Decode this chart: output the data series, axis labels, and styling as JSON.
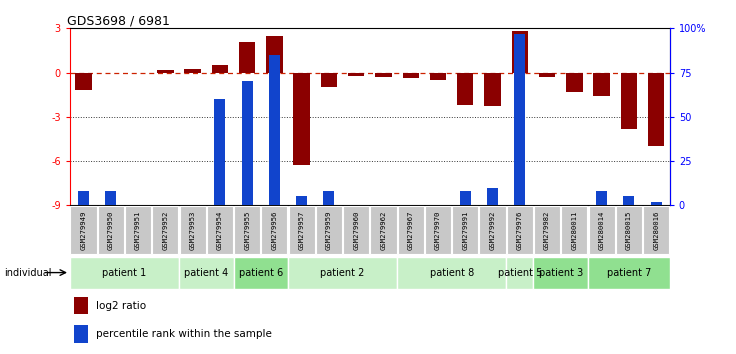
{
  "title": "GDS3698 / 6981",
  "samples": [
    "GSM279949",
    "GSM279950",
    "GSM279951",
    "GSM279952",
    "GSM279953",
    "GSM279954",
    "GSM279955",
    "GSM279956",
    "GSM279957",
    "GSM279959",
    "GSM279960",
    "GSM279962",
    "GSM279967",
    "GSM279970",
    "GSM279991",
    "GSM279992",
    "GSM279976",
    "GSM279982",
    "GSM280011",
    "GSM280014",
    "GSM280015",
    "GSM280016"
  ],
  "log2_ratio": [
    -1.2,
    0.0,
    0.0,
    0.15,
    0.25,
    0.5,
    2.1,
    2.5,
    -6.3,
    -1.0,
    -0.2,
    -0.3,
    -0.4,
    -0.5,
    -2.2,
    -2.3,
    2.8,
    -0.3,
    -1.3,
    -1.6,
    -3.8,
    -5.0
  ],
  "percentile_rank": [
    8,
    8,
    0,
    0,
    0,
    60,
    70,
    85,
    5,
    8,
    0,
    0,
    0,
    0,
    8,
    10,
    97,
    0,
    0,
    8,
    5,
    2
  ],
  "patients": [
    {
      "label": "patient 1",
      "start": 0,
      "end": 4,
      "color": "#c8f0c8"
    },
    {
      "label": "patient 4",
      "start": 4,
      "end": 6,
      "color": "#c8f0c8"
    },
    {
      "label": "patient 6",
      "start": 6,
      "end": 8,
      "color": "#90e090"
    },
    {
      "label": "patient 2",
      "start": 8,
      "end": 12,
      "color": "#c8f0c8"
    },
    {
      "label": "patient 8",
      "start": 12,
      "end": 16,
      "color": "#c8f0c8"
    },
    {
      "label": "patient 5",
      "start": 16,
      "end": 17,
      "color": "#c8f0c8"
    },
    {
      "label": "patient 3",
      "start": 17,
      "end": 19,
      "color": "#90e090"
    },
    {
      "label": "patient 7",
      "start": 19,
      "end": 22,
      "color": "#90e090"
    }
  ],
  "ylim_left": [
    -9,
    3
  ],
  "ylim_right": [
    0,
    100
  ],
  "bar_color_red": "#8B0000",
  "bar_color_blue": "#1144cc",
  "dashed_line_color": "#cc2200",
  "dotted_line_color": "#333333",
  "chart_bg": "#ffffff",
  "xlab_bg": "#c8c8c8",
  "legend_red_label": "log2 ratio",
  "legend_blue_label": "percentile rank within the sample",
  "left_yticks": [
    -9,
    -6,
    -3,
    0,
    3
  ],
  "right_yticks": [
    0,
    25,
    50,
    75,
    100
  ]
}
